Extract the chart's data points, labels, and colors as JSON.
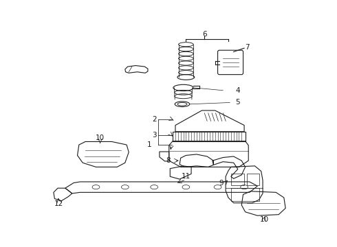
{
  "bg_color": "#ffffff",
  "line_color": "#1a1a1a",
  "fig_width": 4.9,
  "fig_height": 3.6,
  "dpi": 100,
  "label_fontsize": 7.5,
  "lw": 0.8
}
